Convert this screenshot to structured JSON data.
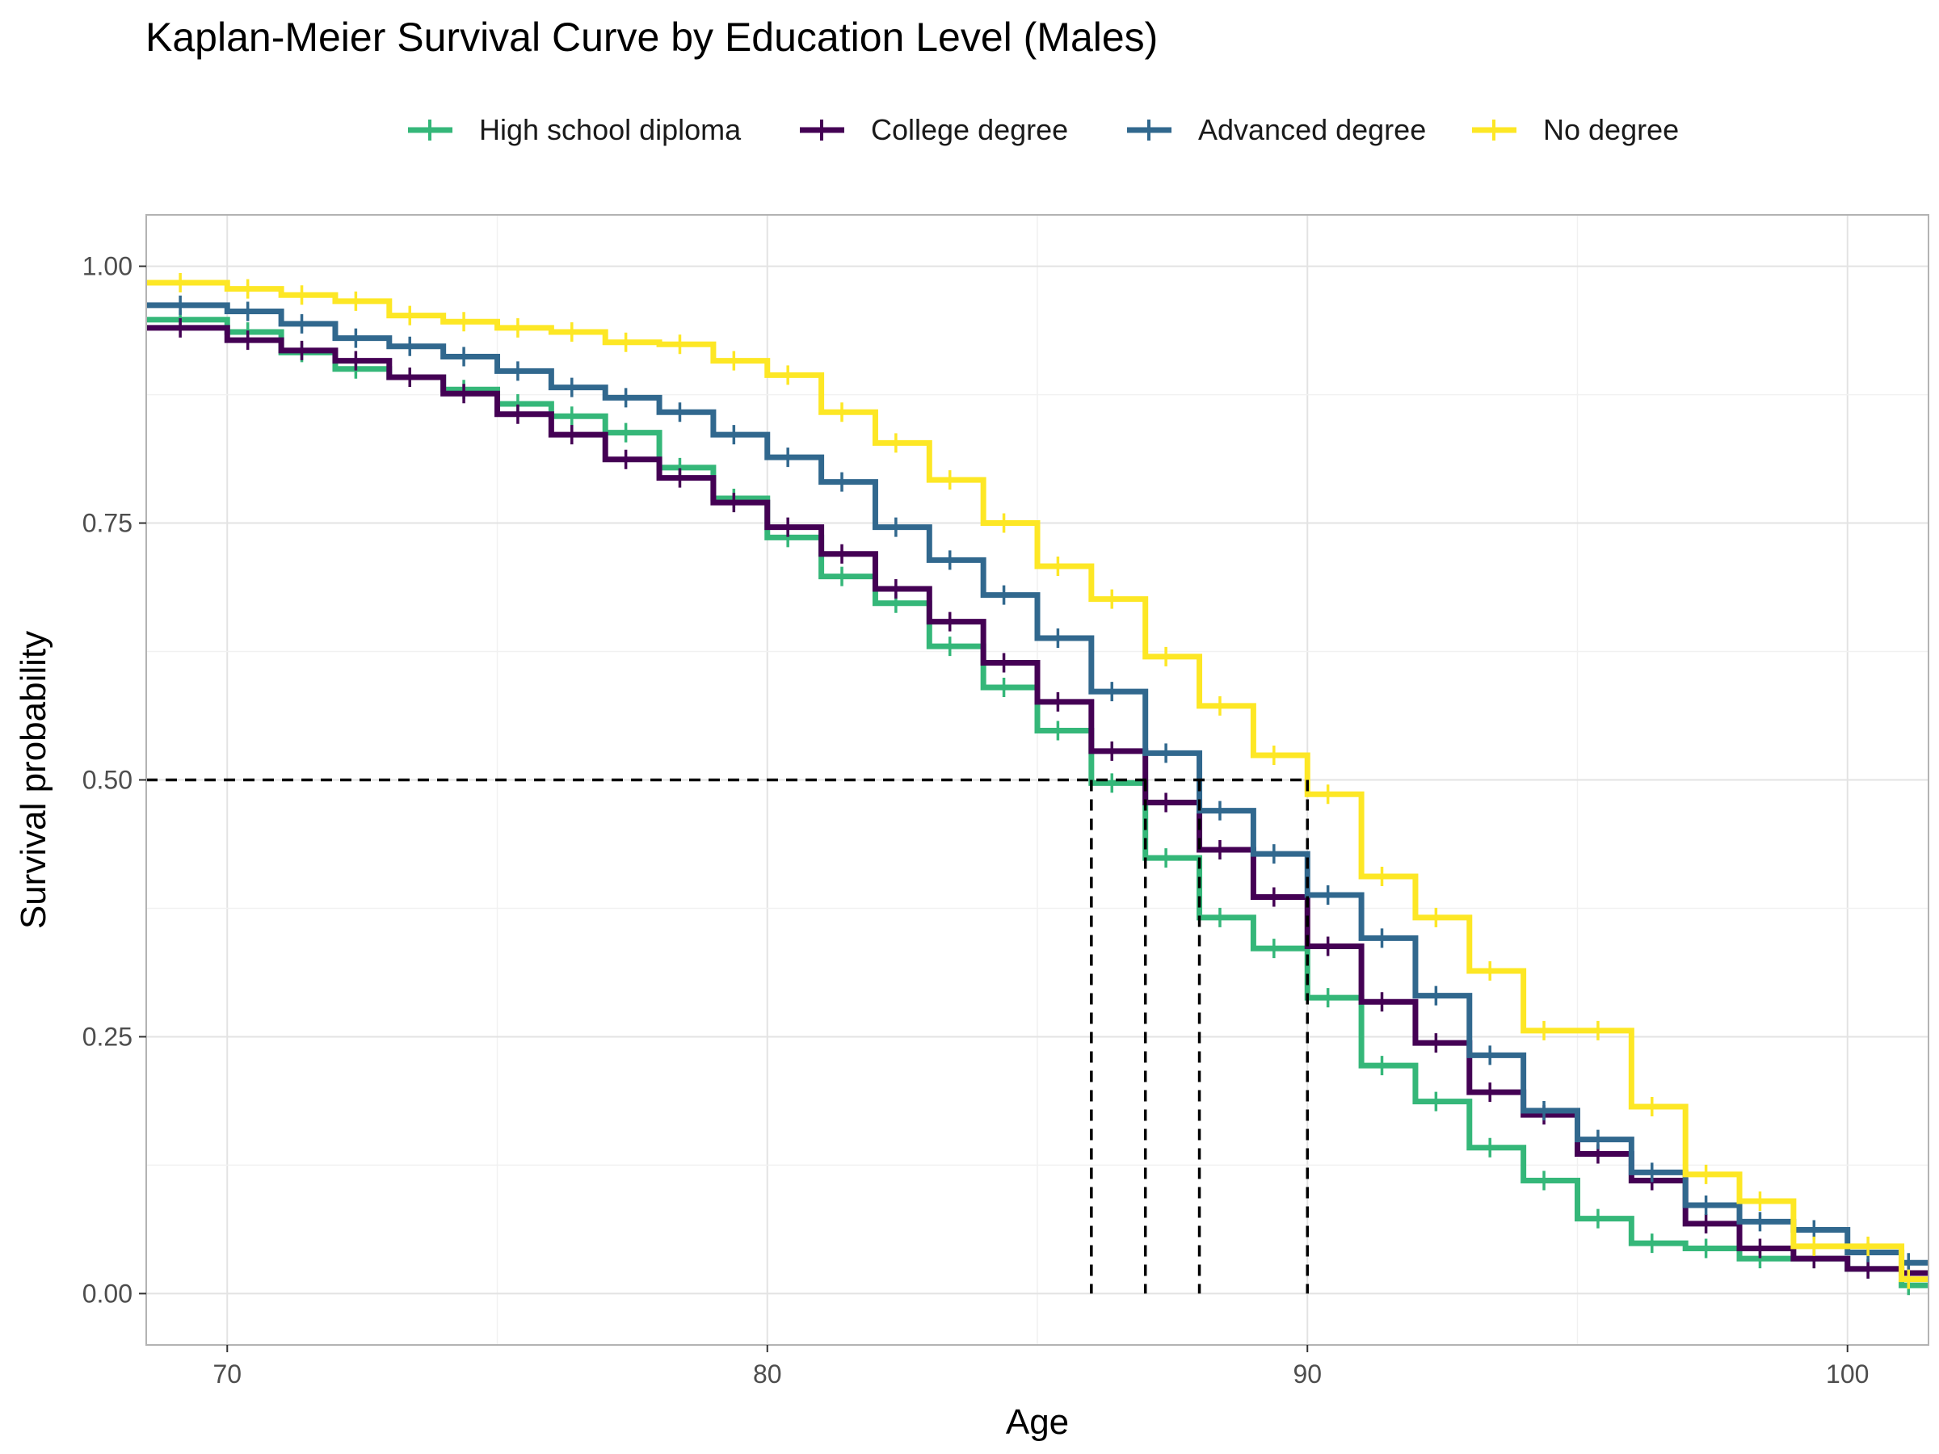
{
  "chart_data": {
    "type": "line",
    "subtype": "step",
    "title": "Kaplan-Meier Survival Curve by Education Level (Males)",
    "xlabel": "Age",
    "ylabel": "Survival probability",
    "xlim": [
      68.5,
      101.5
    ],
    "ylim": [
      -0.05,
      1.05
    ],
    "x_ticks": [
      70,
      80,
      90,
      100
    ],
    "y_ticks": [
      0.0,
      0.25,
      0.5,
      0.75,
      1.0
    ],
    "x_tick_labels": [
      "70",
      "80",
      "90",
      "100"
    ],
    "y_tick_labels": [
      "0.00",
      "0.25",
      "0.50",
      "0.75",
      "1.00"
    ],
    "grid": true,
    "legend_position": "top",
    "median_reference": {
      "y": 0.5,
      "x_values": [
        86,
        87,
        88,
        90
      ]
    },
    "series": [
      {
        "name": "High school diploma",
        "color": "#35B779",
        "x": [
          68.5,
          70,
          71,
          72,
          73,
          74,
          75,
          76,
          77,
          78,
          79,
          80,
          81,
          82,
          83,
          84,
          85,
          86,
          87,
          88,
          89,
          90,
          91,
          92,
          93,
          94,
          95,
          96,
          97,
          98,
          99,
          100,
          101
        ],
        "y": [
          0.948,
          0.936,
          0.916,
          0.9,
          0.892,
          0.88,
          0.866,
          0.854,
          0.838,
          0.804,
          0.774,
          0.736,
          0.698,
          0.672,
          0.63,
          0.59,
          0.548,
          0.497,
          0.424,
          0.366,
          0.336,
          0.288,
          0.222,
          0.187,
          0.142,
          0.11,
          0.073,
          0.049,
          0.044,
          0.034,
          0.034,
          0.024,
          0.008
        ]
      },
      {
        "name": "College degree",
        "color": "#440154",
        "x": [
          68.5,
          70,
          71,
          72,
          73,
          74,
          75,
          76,
          77,
          78,
          79,
          80,
          81,
          82,
          83,
          84,
          85,
          86,
          87,
          88,
          89,
          90,
          91,
          92,
          93,
          94,
          95,
          96,
          97,
          98,
          99,
          100,
          101
        ],
        "y": [
          0.94,
          0.928,
          0.918,
          0.908,
          0.892,
          0.876,
          0.856,
          0.836,
          0.812,
          0.794,
          0.77,
          0.746,
          0.72,
          0.686,
          0.654,
          0.614,
          0.576,
          0.528,
          0.478,
          0.432,
          0.386,
          0.338,
          0.284,
          0.244,
          0.196,
          0.174,
          0.136,
          0.11,
          0.068,
          0.044,
          0.034,
          0.024,
          0.02
        ]
      },
      {
        "name": "Advanced degree",
        "color": "#31688E",
        "x": [
          68.5,
          70,
          71,
          72,
          73,
          74,
          75,
          76,
          77,
          78,
          79,
          80,
          81,
          82,
          83,
          84,
          85,
          86,
          87,
          88,
          89,
          90,
          91,
          92,
          93,
          94,
          95,
          96,
          97,
          98,
          99,
          100,
          101
        ],
        "y": [
          0.962,
          0.956,
          0.944,
          0.93,
          0.922,
          0.912,
          0.898,
          0.882,
          0.872,
          0.858,
          0.836,
          0.814,
          0.79,
          0.746,
          0.714,
          0.68,
          0.638,
          0.586,
          0.526,
          0.47,
          0.428,
          0.388,
          0.346,
          0.29,
          0.232,
          0.178,
          0.15,
          0.118,
          0.086,
          0.07,
          0.062,
          0.04,
          0.03
        ]
      },
      {
        "name": "No degree",
        "color": "#FDE725",
        "x": [
          68.5,
          70,
          71,
          72,
          73,
          74,
          75,
          76,
          77,
          78,
          79,
          80,
          81,
          82,
          83,
          84,
          85,
          86,
          87,
          88,
          89,
          90,
          91,
          92,
          93,
          94,
          95,
          96,
          97,
          98,
          99,
          100,
          101
        ],
        "y": [
          0.984,
          0.978,
          0.972,
          0.966,
          0.952,
          0.946,
          0.94,
          0.936,
          0.926,
          0.924,
          0.908,
          0.894,
          0.858,
          0.828,
          0.792,
          0.75,
          0.708,
          0.676,
          0.62,
          0.572,
          0.524,
          0.486,
          0.406,
          0.366,
          0.314,
          0.256,
          0.256,
          0.182,
          0.116,
          0.09,
          0.046,
          0.046,
          0.014
        ]
      }
    ]
  }
}
